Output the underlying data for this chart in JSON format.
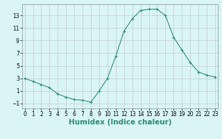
{
  "x": [
    0,
    1,
    2,
    3,
    4,
    5,
    6,
    7,
    8,
    9,
    10,
    11,
    12,
    13,
    14,
    15,
    16,
    17,
    18,
    19,
    20,
    21,
    22,
    23
  ],
  "y": [
    3,
    2.5,
    2,
    1.5,
    0.5,
    0.0,
    -0.4,
    -0.5,
    -0.8,
    1.0,
    3.0,
    6.5,
    10.5,
    12.5,
    13.8,
    14.0,
    14.0,
    13.0,
    9.5,
    7.5,
    5.5,
    4.0,
    3.5,
    3.2
  ],
  "line_color": "#2e8b70",
  "marker": "+",
  "marker_color": "#2e8b70",
  "bg_color": "#d9f5f5",
  "grid_color": "#c8c8c8",
  "xlabel": "Humidex (Indice chaleur)",
  "xlabel_color": "#2e8b70",
  "yticks": [
    -1,
    1,
    3,
    5,
    7,
    9,
    11,
    13
  ],
  "xticks": [
    0,
    1,
    2,
    3,
    4,
    5,
    6,
    7,
    8,
    9,
    10,
    11,
    12,
    13,
    14,
    15,
    16,
    17,
    18,
    19,
    20,
    21,
    22,
    23
  ],
  "ylim": [
    -1.8,
    14.8
  ],
  "xlim": [
    -0.3,
    23.3
  ],
  "tick_fontsize": 5.5,
  "xlabel_fontsize": 7.5,
  "line_width": 0.8,
  "marker_size": 3
}
